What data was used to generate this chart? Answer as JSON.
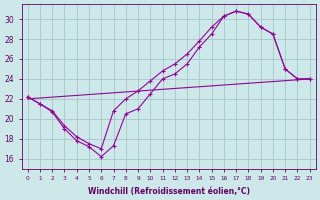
{
  "bg_color": "#cce8e8",
  "grid_color": "#aacccc",
  "line_color": "#990099",
  "label_color": "#660066",
  "xlabel": "Windchill (Refroidissement éolien,°C)",
  "xlim": [
    -0.5,
    23.5
  ],
  "ylim": [
    15.0,
    31.5
  ],
  "xtick_vals": [
    0,
    1,
    2,
    3,
    4,
    5,
    6,
    7,
    8,
    9,
    10,
    11,
    12,
    13,
    14,
    15,
    16,
    17,
    18,
    19,
    20,
    21,
    22,
    23
  ],
  "ytick_vals": [
    16,
    18,
    20,
    22,
    24,
    26,
    28,
    30
  ],
  "line1_x": [
    0,
    1,
    2,
    3,
    4,
    5,
    6,
    7,
    8,
    9,
    10,
    11,
    12,
    13,
    14,
    15,
    16,
    17,
    18,
    19,
    20,
    21,
    22,
    23
  ],
  "line1_y": [
    22.2,
    21.5,
    20.7,
    19.0,
    17.8,
    17.2,
    16.2,
    17.3,
    20.5,
    21.0,
    22.5,
    24.0,
    24.5,
    25.5,
    27.2,
    28.5,
    30.3,
    30.8,
    30.5,
    29.2,
    28.5,
    25.0,
    24.0,
    24.0
  ],
  "line2_x": [
    0,
    1,
    2,
    3,
    4,
    5,
    6,
    7,
    8,
    9,
    10,
    11,
    12,
    13,
    14,
    15,
    16,
    17,
    18,
    19,
    20,
    21,
    22,
    23
  ],
  "line2_y": [
    22.2,
    21.5,
    20.8,
    19.3,
    18.2,
    17.5,
    17.0,
    20.8,
    22.0,
    22.8,
    23.8,
    24.8,
    25.5,
    26.5,
    27.8,
    29.2,
    30.3,
    30.8,
    30.5,
    29.2,
    28.5,
    25.0,
    24.0,
    24.0
  ],
  "line3_x": [
    0,
    23
  ],
  "line3_y": [
    22.0,
    24.0
  ]
}
